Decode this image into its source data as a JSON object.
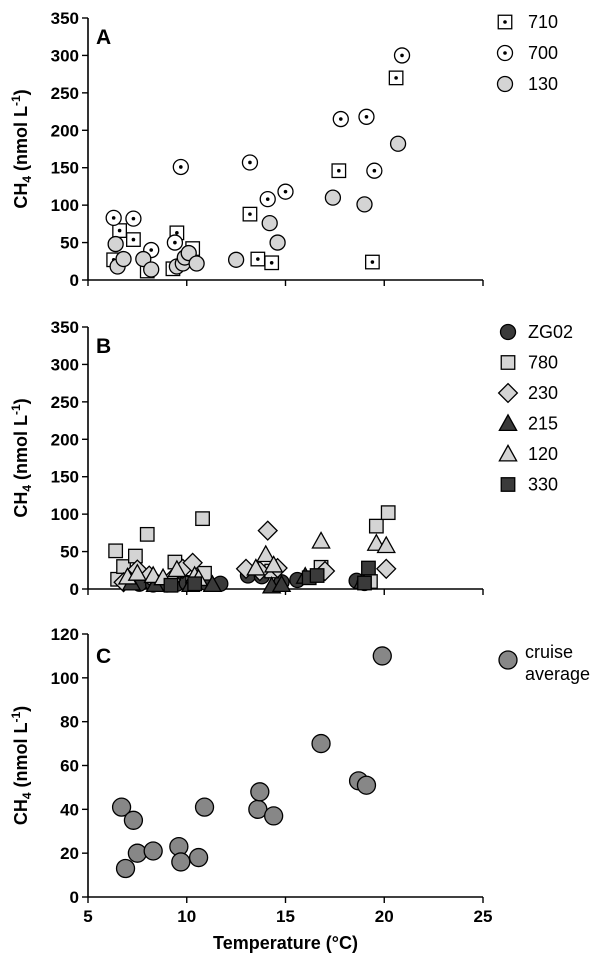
{
  "chart_data": [
    {
      "type": "scatter",
      "panel": "A",
      "ylabel": "CH4 (nmol L-1)",
      "xlim": [
        5,
        25
      ],
      "ylim": [
        0,
        350
      ],
      "yticks": [
        0,
        50,
        100,
        150,
        200,
        250,
        300,
        350
      ],
      "legend_position": "right",
      "series": [
        {
          "name": "710",
          "marker": "square-dot",
          "fill": "#ffffff",
          "points": [
            [
              6.3,
              27
            ],
            [
              6.6,
              66
            ],
            [
              7.3,
              54
            ],
            [
              8.0,
              12
            ],
            [
              9.3,
              15
            ],
            [
              9.5,
              63
            ],
            [
              10.3,
              42
            ],
            [
              13.2,
              88
            ],
            [
              13.6,
              28
            ],
            [
              14.3,
              23
            ],
            [
              17.7,
              146
            ],
            [
              19.4,
              24
            ],
            [
              20.6,
              270
            ]
          ]
        },
        {
          "name": "700",
          "marker": "circle-dot",
          "fill": "#ffffff",
          "points": [
            [
              6.3,
              83
            ],
            [
              7.3,
              82
            ],
            [
              8.2,
              40
            ],
            [
              9.4,
              50
            ],
            [
              9.7,
              151
            ],
            [
              13.2,
              157
            ],
            [
              14.1,
              108
            ],
            [
              15.0,
              118
            ],
            [
              17.8,
              215
            ],
            [
              19.1,
              218
            ],
            [
              19.5,
              146
            ],
            [
              20.9,
              300
            ]
          ]
        },
        {
          "name": "130",
          "marker": "circle",
          "fill": "#d4d4d4",
          "points": [
            [
              6.4,
              48
            ],
            [
              6.5,
              18
            ],
            [
              6.8,
              28
            ],
            [
              7.8,
              28
            ],
            [
              8.2,
              14
            ],
            [
              9.5,
              18
            ],
            [
              9.8,
              22
            ],
            [
              9.9,
              30
            ],
            [
              10.1,
              36
            ],
            [
              10.5,
              22
            ],
            [
              12.5,
              27
            ],
            [
              14.2,
              76
            ],
            [
              14.6,
              50
            ],
            [
              17.4,
              110
            ],
            [
              19.0,
              101
            ],
            [
              20.7,
              182
            ]
          ]
        }
      ]
    },
    {
      "type": "scatter",
      "panel": "B",
      "ylabel": "CH4 (nmol L-1)",
      "xlim": [
        5,
        25
      ],
      "ylim": [
        0,
        350
      ],
      "yticks": [
        0,
        50,
        100,
        150,
        200,
        250,
        300,
        350
      ],
      "legend_position": "right",
      "series": [
        {
          "name": "ZG02",
          "marker": "circle",
          "fill": "#3a3a3a",
          "points": [
            [
              7.6,
              7
            ],
            [
              8.3,
              6
            ],
            [
              9.0,
              6
            ],
            [
              9.5,
              7
            ],
            [
              10.0,
              8
            ],
            [
              10.5,
              7
            ],
            [
              11.0,
              8
            ],
            [
              11.7,
              7
            ],
            [
              13.1,
              18
            ],
            [
              13.8,
              17
            ],
            [
              14.8,
              9
            ],
            [
              15.6,
              12
            ],
            [
              18.6,
              11
            ],
            [
              19.0,
              8
            ]
          ]
        },
        {
          "name": "780",
          "marker": "square",
          "fill": "#d4d4d4",
          "points": [
            [
              6.4,
              51
            ],
            [
              6.5,
              13
            ],
            [
              6.8,
              30
            ],
            [
              7.4,
              44
            ],
            [
              8.0,
              73
            ],
            [
              9.4,
              36
            ],
            [
              10.3,
              8
            ],
            [
              10.8,
              94
            ],
            [
              10.9,
              21
            ],
            [
              14.3,
              24
            ],
            [
              16.8,
              29
            ],
            [
              19.6,
              84
            ],
            [
              20.2,
              102
            ],
            [
              19.3,
              10
            ]
          ]
        },
        {
          "name": "230",
          "marker": "diamond",
          "fill": "#d4d4d4",
          "points": [
            [
              6.8,
              9
            ],
            [
              7.5,
              26
            ],
            [
              8.1,
              18
            ],
            [
              9.2,
              12
            ],
            [
              9.8,
              27
            ],
            [
              10.3,
              35
            ],
            [
              13.0,
              27
            ],
            [
              13.7,
              24
            ],
            [
              14.1,
              78
            ],
            [
              14.6,
              28
            ],
            [
              17.0,
              24
            ],
            [
              20.1,
              27
            ]
          ]
        },
        {
          "name": "215",
          "marker": "triangle",
          "fill": "#3a3a3a",
          "points": [
            [
              7.2,
              8
            ],
            [
              8.4,
              6
            ],
            [
              10.2,
              6
            ],
            [
              11.3,
              6
            ],
            [
              14.3,
              4
            ],
            [
              14.8,
              6
            ],
            [
              16.0,
              17
            ],
            [
              18.9,
              10
            ]
          ]
        },
        {
          "name": "120",
          "marker": "triangle",
          "fill": "#d4d4d4",
          "points": [
            [
              7.0,
              16
            ],
            [
              7.5,
              21
            ],
            [
              8.3,
              18
            ],
            [
              8.8,
              15
            ],
            [
              9.5,
              26
            ],
            [
              10.4,
              18
            ],
            [
              10.6,
              14
            ],
            [
              13.5,
              28
            ],
            [
              14.0,
              46
            ],
            [
              14.4,
              32
            ],
            [
              16.8,
              64
            ],
            [
              19.6,
              61
            ],
            [
              20.1,
              58
            ]
          ]
        },
        {
          "name": "330",
          "marker": "square",
          "fill": "#3a3a3a",
          "points": [
            [
              9.2,
              5
            ],
            [
              10.4,
              7
            ],
            [
              16.2,
              15
            ],
            [
              16.6,
              18
            ],
            [
              19.0,
              8
            ],
            [
              19.2,
              28
            ]
          ]
        }
      ]
    },
    {
      "type": "scatter",
      "panel": "C",
      "xlabel": "Temperature (°C)",
      "ylabel": "CH4 (nmol L-1)",
      "xlim": [
        5,
        25
      ],
      "ylim": [
        0,
        120
      ],
      "xticks": [
        5,
        10,
        15,
        20,
        25
      ],
      "yticks": [
        0,
        20,
        40,
        60,
        80,
        100,
        120
      ],
      "legend_position": "right",
      "series": [
        {
          "name": "cruise average",
          "marker": "circle",
          "fill": "#878787",
          "points": [
            [
              6.7,
              41
            ],
            [
              6.9,
              13
            ],
            [
              7.3,
              35
            ],
            [
              7.5,
              20
            ],
            [
              8.3,
              21
            ],
            [
              9.6,
              23
            ],
            [
              9.7,
              16
            ],
            [
              10.6,
              18
            ],
            [
              10.9,
              41
            ],
            [
              13.6,
              40
            ],
            [
              13.7,
              48
            ],
            [
              14.4,
              37
            ],
            [
              16.8,
              70
            ],
            [
              18.7,
              53
            ],
            [
              19.1,
              51
            ],
            [
              19.9,
              110
            ]
          ]
        }
      ]
    }
  ]
}
